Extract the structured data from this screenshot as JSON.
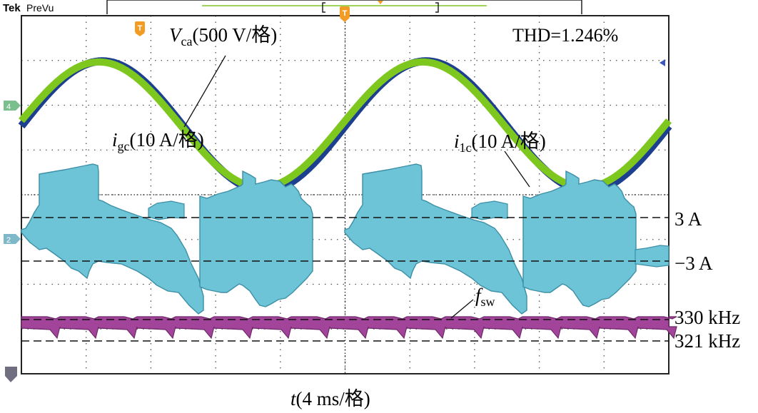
{
  "header": {
    "brand": "Tek",
    "mode": "PreVu"
  },
  "markers": {
    "trigger_glyph": "T",
    "ch4_tag": "4",
    "ch2_tag": "2"
  },
  "colors": {
    "vca": "#1d3f8f",
    "igc": "#7ec71e",
    "i1c": "#6cc4d6",
    "fsw": "#a2449a",
    "trigger": "#f29c25",
    "grid": "#222222",
    "ch4_tag": "#7bbf8f",
    "ch2_tag": "#7fb9c9",
    "ref_marker": "#6f6f7f"
  },
  "annotations": {
    "vca": {
      "sym": "V",
      "sub": "ca",
      "scale": "(500 V/格)"
    },
    "igc": {
      "sym": "i",
      "sub": "gc",
      "scale": "(10 A/格)"
    },
    "i1c": {
      "sym": "i",
      "sub": "1c",
      "scale": "(10 A/格)"
    },
    "fsw": {
      "sym": "f",
      "sub": "sw"
    },
    "thd": "THD=1.246%",
    "time_axis": {
      "sym": "t",
      "scale": "(4 ms/格)"
    }
  },
  "reference_lines": [
    {
      "label": "3 A"
    },
    {
      "label": "−3 A"
    },
    {
      "label": "330 kHz"
    },
    {
      "label": "321 kHz"
    }
  ],
  "chart_data": {
    "type": "line",
    "x_unit": "ms",
    "x_per_div": 4,
    "xlim": [
      0,
      40
    ],
    "grid": true,
    "thd_percent": 1.246,
    "series": [
      {
        "name": "Vca",
        "scale_per_div": "500 V",
        "waveform": "sine",
        "period_ms": 20,
        "peak_time_ms": 5,
        "peak_div": 1.45,
        "center_div": 2.45
      },
      {
        "name": "igc",
        "scale_per_div": "10 A",
        "waveform": "sine",
        "period_ms": 20,
        "peak_time_ms": 4.8,
        "peak_div": 1.4,
        "center_div": 2.45,
        "in_phase_with": "Vca"
      },
      {
        "name": "i1c",
        "scale_per_div": "10 A",
        "waveform": "switching ripple envelope",
        "ref_levels_A": [
          3,
          -3
        ]
      },
      {
        "name": "fsw",
        "waveform": "switching frequency",
        "ref_levels_kHz": [
          330,
          321
        ]
      }
    ]
  }
}
